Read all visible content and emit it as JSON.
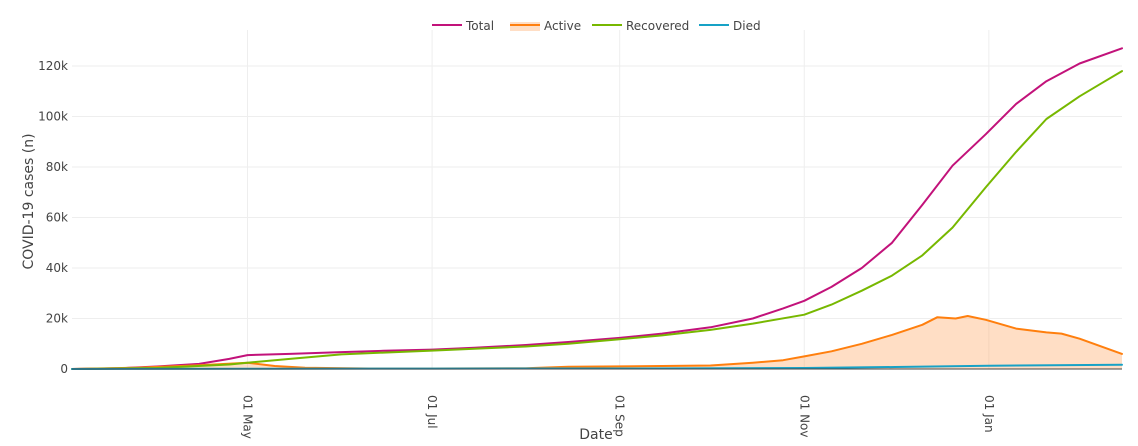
{
  "chart_data": {
    "type": "line",
    "xlabel": "Date",
    "ylabel": "COVID-19 cases (n)",
    "x_range": [
      "2020-03-04",
      "2021-02-14"
    ],
    "y_range": [
      0,
      130000
    ],
    "y_ticks": [
      0,
      20000,
      40000,
      60000,
      80000,
      100000,
      120000
    ],
    "y_tick_labels": [
      "0",
      "20k",
      "40k",
      "60k",
      "80k",
      "100k",
      "120k"
    ],
    "x_ticks": [
      "2020-05-01",
      "2020-07-01",
      "2020-09-01",
      "2020-11-01",
      "2021-01-01"
    ],
    "x_tick_labels": [
      "01 May",
      "01 Jul",
      "01 Sep",
      "01 Nov",
      "01 Jan"
    ],
    "x_tick_rotation": "vertical",
    "grid": true,
    "legend_position": "top-center",
    "series": [
      {
        "name": "Total",
        "color": "#c2127a",
        "fill": false,
        "points": [
          [
            "2020-03-04",
            0
          ],
          [
            "2020-03-20",
            300
          ],
          [
            "2020-04-01",
            1000
          ],
          [
            "2020-04-15",
            2000
          ],
          [
            "2020-04-25",
            4000
          ],
          [
            "2020-05-01",
            5500
          ],
          [
            "2020-05-15",
            6000
          ],
          [
            "2020-06-01",
            6700
          ],
          [
            "2020-06-15",
            7200
          ],
          [
            "2020-07-01",
            7700
          ],
          [
            "2020-07-15",
            8400
          ],
          [
            "2020-08-01",
            9500
          ],
          [
            "2020-08-15",
            10700
          ],
          [
            "2020-09-01",
            12300
          ],
          [
            "2020-09-15",
            14000
          ],
          [
            "2020-10-01",
            16500
          ],
          [
            "2020-10-15",
            20000
          ],
          [
            "2020-10-25",
            24000
          ],
          [
            "2020-11-01",
            27000
          ],
          [
            "2020-11-10",
            32500
          ],
          [
            "2020-11-20",
            40000
          ],
          [
            "2020-11-30",
            50000
          ],
          [
            "2020-12-10",
            65000
          ],
          [
            "2020-12-20",
            80500
          ],
          [
            "2020-12-31",
            93000
          ],
          [
            "2021-01-10",
            105000
          ],
          [
            "2021-01-20",
            114000
          ],
          [
            "2021-01-31",
            121000
          ],
          [
            "2021-02-14",
            127000
          ]
        ]
      },
      {
        "name": "Active",
        "color": "#ff7f0e",
        "fill": true,
        "fill_color": "rgba(255,160,90,0.35)",
        "points": [
          [
            "2020-03-04",
            0
          ],
          [
            "2020-03-25",
            500
          ],
          [
            "2020-04-15",
            1500
          ],
          [
            "2020-05-01",
            2500
          ],
          [
            "2020-05-10",
            1200
          ],
          [
            "2020-05-20",
            500
          ],
          [
            "2020-06-10",
            200
          ],
          [
            "2020-07-01",
            200
          ],
          [
            "2020-08-01",
            300
          ],
          [
            "2020-08-15",
            900
          ],
          [
            "2020-09-15",
            1200
          ],
          [
            "2020-10-01",
            1400
          ],
          [
            "2020-10-15",
            2500
          ],
          [
            "2020-10-25",
            3500
          ],
          [
            "2020-11-01",
            5000
          ],
          [
            "2020-11-10",
            7000
          ],
          [
            "2020-11-20",
            10000
          ],
          [
            "2020-11-30",
            13500
          ],
          [
            "2020-12-10",
            17500
          ],
          [
            "2020-12-15",
            20500
          ],
          [
            "2020-12-21",
            20000
          ],
          [
            "2020-12-25",
            21000
          ],
          [
            "2020-12-31",
            19500
          ],
          [
            "2021-01-10",
            16000
          ],
          [
            "2021-01-20",
            14500
          ],
          [
            "2021-01-25",
            14000
          ],
          [
            "2021-01-31",
            12000
          ],
          [
            "2021-02-07",
            9000
          ],
          [
            "2021-02-14",
            6000
          ]
        ]
      },
      {
        "name": "Recovered",
        "color": "#77b800",
        "fill": false,
        "points": [
          [
            "2020-03-04",
            0
          ],
          [
            "2020-04-01",
            400
          ],
          [
            "2020-04-25",
            1800
          ],
          [
            "2020-05-01",
            2500
          ],
          [
            "2020-05-15",
            4000
          ],
          [
            "2020-06-01",
            5800
          ],
          [
            "2020-06-15",
            6500
          ],
          [
            "2020-07-01",
            7300
          ],
          [
            "2020-07-15",
            8000
          ],
          [
            "2020-08-01",
            8900
          ],
          [
            "2020-08-15",
            10000
          ],
          [
            "2020-09-01",
            11800
          ],
          [
            "2020-09-15",
            13300
          ],
          [
            "2020-10-01",
            15500
          ],
          [
            "2020-10-15",
            18000
          ],
          [
            "2020-11-01",
            21500
          ],
          [
            "2020-11-10",
            25500
          ],
          [
            "2020-11-20",
            31000
          ],
          [
            "2020-11-30",
            37000
          ],
          [
            "2020-12-10",
            45000
          ],
          [
            "2020-12-20",
            56000
          ],
          [
            "2020-12-31",
            72000
          ],
          [
            "2021-01-10",
            86000
          ],
          [
            "2021-01-20",
            99000
          ],
          [
            "2021-01-31",
            108000
          ],
          [
            "2021-02-07",
            113000
          ],
          [
            "2021-02-14",
            118000
          ]
        ]
      },
      {
        "name": "Died",
        "color": "#17a2c6",
        "fill": false,
        "points": [
          [
            "2020-03-04",
            0
          ],
          [
            "2020-05-01",
            100
          ],
          [
            "2020-07-01",
            150
          ],
          [
            "2020-09-01",
            200
          ],
          [
            "2020-11-01",
            400
          ],
          [
            "2020-12-01",
            800
          ],
          [
            "2021-01-01",
            1300
          ],
          [
            "2021-02-14",
            1700
          ]
        ]
      }
    ]
  }
}
